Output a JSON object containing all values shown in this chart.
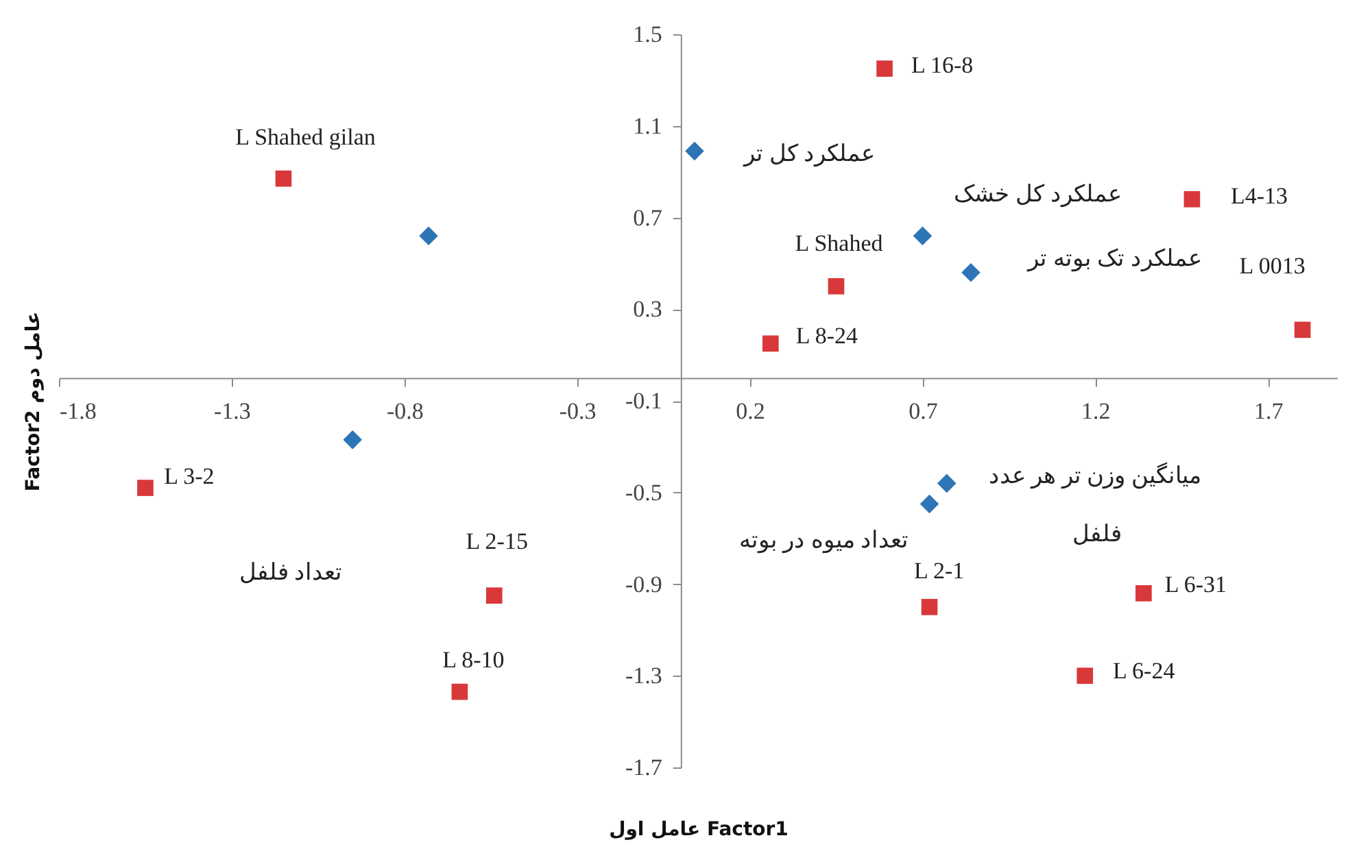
{
  "chart_data": {
    "type": "scatter",
    "xlabel": "عامل اول Factor1",
    "ylabel": "Factor2 عامل دوم",
    "xlim": [
      -1.8,
      1.9
    ],
    "xticks": [
      -1.8,
      -1.3,
      -0.8,
      -0.3,
      0.2,
      0.7,
      1.2,
      1.7
    ],
    "ylim": [
      -1.7,
      1.5
    ],
    "yticks": [
      1.5,
      1.1,
      0.7,
      0.3,
      -0.1,
      -0.5,
      -0.9,
      -1.3,
      -1.7
    ],
    "grid": false,
    "series": [
      {
        "color": "#d9383a",
        "marker": "square",
        "x": [
          -1.15,
          0.59,
          1.48,
          0.45,
          0.26,
          1.8,
          -1.55,
          -0.54,
          -0.64,
          0.72,
          1.34,
          1.17
        ],
        "values": [
          0.87,
          1.35,
          0.78,
          0.4,
          0.15,
          0.21,
          -0.48,
          -0.95,
          -1.37,
          -1.0,
          -0.94,
          -1.3
        ]
      },
      {
        "color": "#2e75b6",
        "marker": "diamond",
        "x": [
          -0.73,
          0.04,
          0.7,
          0.84,
          -0.95,
          0.77,
          0.72
        ],
        "values": [
          0.62,
          0.99,
          0.62,
          0.46,
          -0.27,
          -0.46,
          -0.55
        ]
      }
    ],
    "annotations": [
      {
        "text": "L Shahed gilan",
        "x": -1.15,
        "y": 0.87
      },
      {
        "text": "L 16-8",
        "x": 0.59,
        "y": 1.35
      },
      {
        "text": "عملکرد کل تر",
        "x": 0.04,
        "y": 0.99
      },
      {
        "text": "عملکرد کل خشک",
        "x": 0.7,
        "y": 0.62
      },
      {
        "text": "L4-13",
        "x": 1.48,
        "y": 0.78
      },
      {
        "text": "L Shahed",
        "x": 0.45,
        "y": 0.4
      },
      {
        "text": "عملکرد تک بوته تر",
        "x": 0.84,
        "y": 0.46
      },
      {
        "text": "L 0013",
        "x": 1.8,
        "y": 0.21
      },
      {
        "text": "L 8-24",
        "x": 0.26,
        "y": 0.15
      },
      {
        "text": "L 3-2",
        "x": -1.55,
        "y": -0.48
      },
      "تعداد فلفل",
      {
        "text": "L 2-15",
        "x": -0.54,
        "y": -0.95
      },
      {
        "text": "L 8-10",
        "x": -0.64,
        "y": -1.37
      },
      {
        "text": "میانگین وزن تر هر عدد",
        "x": 0.77,
        "y": -0.46
      },
      "فلفل",
      {
        "text": "تعداد میوه در بوته",
        "x": 0.72,
        "y": -0.55
      },
      {
        "text": "L 2-1",
        "x": 0.72,
        "y": -1.0
      },
      {
        "text": "L 6-31",
        "x": 1.34,
        "y": -0.94
      },
      {
        "text": "L 6-24",
        "x": 1.17,
        "y": -1.3
      }
    ]
  }
}
